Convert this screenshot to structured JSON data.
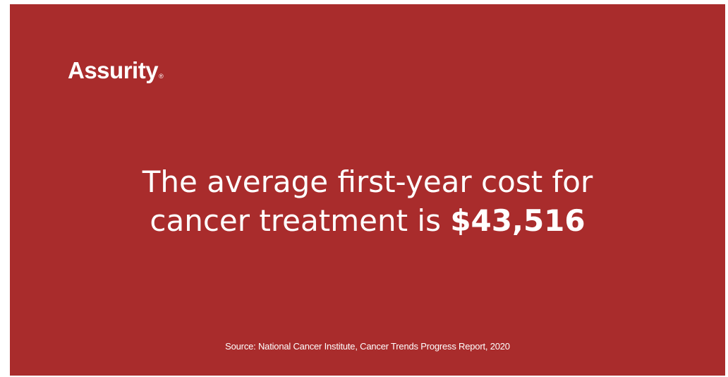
{
  "brand": {
    "name": "Assurity",
    "registered_mark": "®"
  },
  "headline": {
    "line1": "The average first-year cost for",
    "line2_prefix": "cancer treatment is ",
    "amount": "$43,516"
  },
  "source": "Source: National Cancer Institute, Cancer Trends Progress Report, 2020",
  "colors": {
    "background": "#a92c2c",
    "text": "#ffffff"
  }
}
